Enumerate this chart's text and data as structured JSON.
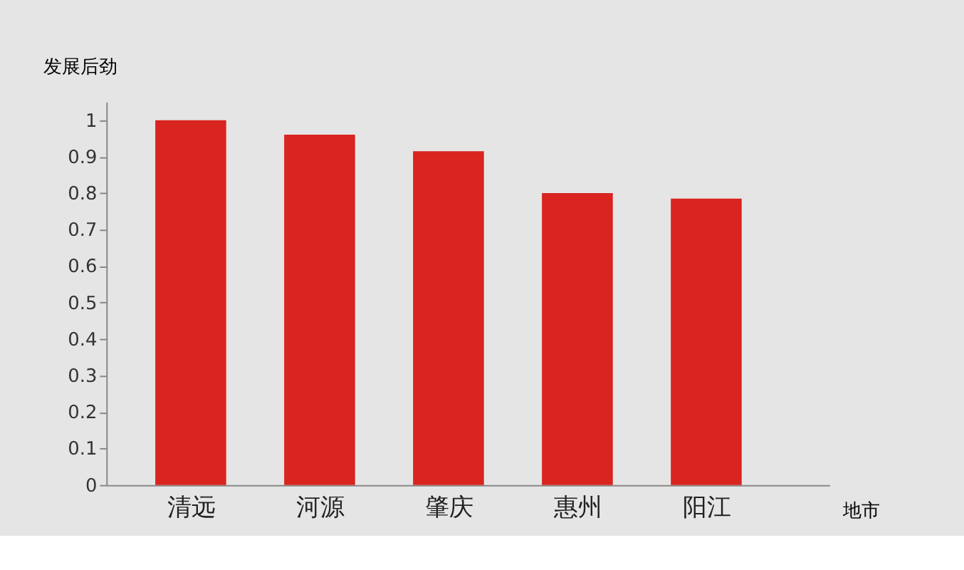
{
  "chart_data": {
    "type": "bar",
    "ylabel": "发展后劲",
    "xlabel": "地市",
    "categories": [
      "清远",
      "河源",
      "肇庆",
      "惠州",
      "阳江"
    ],
    "values": [
      1.0,
      0.96,
      0.915,
      0.8,
      0.785
    ],
    "color": "#d9241f",
    "ylim": [
      0,
      1.05
    ],
    "yticks": [
      0,
      0.1,
      0.2,
      0.3,
      0.4,
      0.5,
      0.6,
      0.7,
      0.8,
      0.9,
      1
    ],
    "grid": false
  }
}
